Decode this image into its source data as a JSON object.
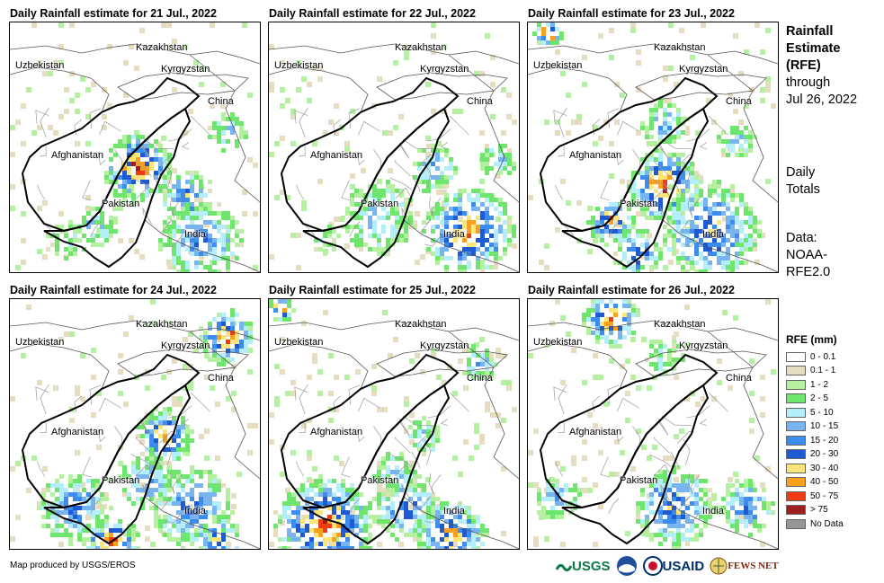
{
  "panels": [
    {
      "title": "Daily Rainfall estimate for 21 Jul., 2022"
    },
    {
      "title": "Daily Rainfall estimate for 22 Jul., 2022"
    },
    {
      "title": "Daily Rainfall estimate for 23 Jul., 2022"
    },
    {
      "title": "Daily Rainfall estimate for 24 Jul., 2022"
    },
    {
      "title": "Daily Rainfall estimate for 25 Jul., 2022"
    },
    {
      "title": "Daily Rainfall estimate for 26 Jul., 2022"
    }
  ],
  "map_labels": {
    "kazakhstan": "Kazakhstan",
    "uzbekistan": "Uzbekistan",
    "kyrgyzstan": "Kyrgyzstan",
    "china": "China",
    "afghanistan": "Afghanistan",
    "pakistan": "Pakistan",
    "india": "India"
  },
  "sidebar": {
    "title_line1": "Rainfall",
    "title_line2": "Estimate",
    "title_line3": "(RFE)",
    "through": "through",
    "date": "Jul 26, 2022",
    "daily": "Daily",
    "totals": "Totals",
    "data_label": "Data:",
    "data_src1": "NOAA-",
    "data_src2": "RFE2.0"
  },
  "legend": {
    "title": "RFE (mm)",
    "items": [
      {
        "label": "0 - 0.1",
        "color": "#ffffff"
      },
      {
        "label": "0.1 - 1",
        "color": "#e6dcc0"
      },
      {
        "label": "1 - 2",
        "color": "#b4f0a0"
      },
      {
        "label": "2 - 5",
        "color": "#6ee66e"
      },
      {
        "label": "5 - 10",
        "color": "#b4eefa"
      },
      {
        "label": "10 - 15",
        "color": "#78b4f0"
      },
      {
        "label": "15 - 20",
        "color": "#3c8cf0"
      },
      {
        "label": "20 - 30",
        "color": "#1e5ad2"
      },
      {
        "label": "30 - 40",
        "color": "#fae678"
      },
      {
        "label": "40 - 50",
        "color": "#faa01e"
      },
      {
        "label": "50 - 75",
        "color": "#f03c14"
      },
      {
        "label": "> 75",
        "color": "#a01e1e"
      },
      {
        "label": "No Data",
        "color": "#969696"
      }
    ]
  },
  "credit": "Map produced by USGS/EROS",
  "logos": {
    "usgs": "USGS",
    "usaid": "USAID",
    "fewsnet": "FEWS NET"
  }
}
